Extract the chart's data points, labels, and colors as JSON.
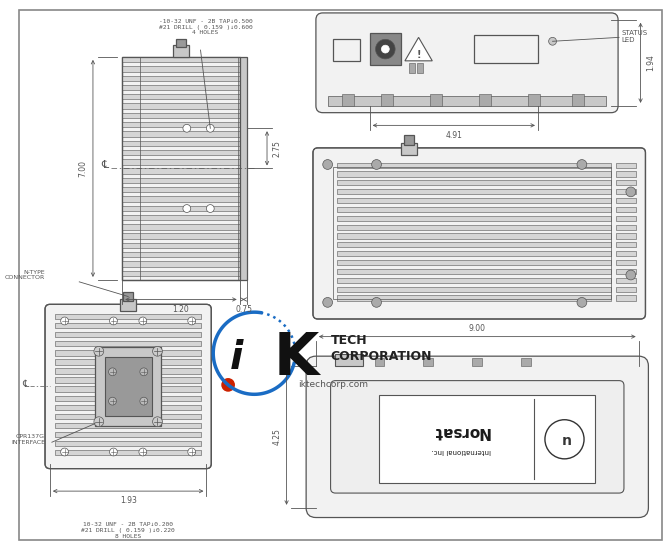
{
  "bg_color": "#ffffff",
  "line_color": "#555555",
  "dim_color": "#555555",
  "annotations": {
    "top_note": "-10-32 UNF - 2B TAP↓0.500\n#21 DRILL ( 0.159 )↓0.600\n4 HOLES",
    "bottom_note": "10-32 UNF - 2B TAP↓0.200\n#21 DRILL ( 0.159 )↓0.220\n8 HOLES",
    "status_led": "STATUS\nLED",
    "n_type": "N-TYPE\nCONNECTOR",
    "cpr137g": "CPR137G\nINTERFACE",
    "dim_700": "7.00",
    "dim_275": "2.75",
    "dim_120": "1.20",
    "dim_075": "0.75",
    "dim_194": "1.94",
    "dim_491": "4.91",
    "dim_900": "9.00",
    "dim_425": "4.25",
    "dim_193": "1.93",
    "centerline": "℄"
  }
}
